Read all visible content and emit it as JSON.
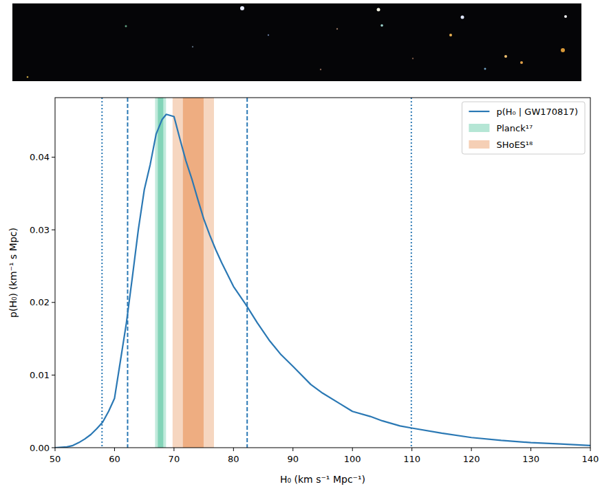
{
  "chart_data": {
    "type": "line",
    "xlabel": "H₀ (km s⁻¹ Mpc⁻¹)",
    "ylabel": "p(H₀) (km⁻¹ s Mpc)",
    "x": [
      50,
      52,
      53,
      54,
      55,
      56,
      57,
      58,
      59,
      60,
      61,
      62,
      63,
      64,
      65,
      66,
      67,
      68,
      68.7,
      70,
      71,
      72,
      73,
      74,
      75,
      76,
      77,
      78,
      80,
      82,
      84,
      86,
      88,
      90,
      93,
      95,
      98,
      100,
      103,
      105,
      108,
      110,
      115,
      120,
      125,
      130,
      135,
      140
    ],
    "series": [
      {
        "name": "p(H₀ | GW170817)",
        "color": "#2a78b4",
        "values": [
          0,
          0.0001,
          0.0003,
          0.0007,
          0.0012,
          0.0018,
          0.0026,
          0.0035,
          0.005,
          0.0068,
          0.012,
          0.0172,
          0.0235,
          0.03,
          0.0355,
          0.039,
          0.0432,
          0.0452,
          0.0459,
          0.0456,
          0.0425,
          0.0395,
          0.037,
          0.0342,
          0.0315,
          0.0293,
          0.0273,
          0.0255,
          0.0222,
          0.0198,
          0.0172,
          0.0148,
          0.0128,
          0.0112,
          0.0087,
          0.0075,
          0.006,
          0.005,
          0.0043,
          0.0037,
          0.003,
          0.0027,
          0.002,
          0.0014,
          0.001,
          0.0007,
          0.0005,
          0.0003
        ]
      }
    ],
    "bands": [
      {
        "name": "Planck¹⁷",
        "color": "#5cc7a2",
        "inner": [
          67.28,
          68.2
        ],
        "outer": [
          66.82,
          68.66
        ]
      },
      {
        "name": "SHoES¹⁸",
        "color": "#e8945a",
        "inner": [
          71.5,
          74.98
        ],
        "outer": [
          69.76,
          76.72
        ]
      }
    ],
    "intervals": [
      {
        "values": [
          62.2,
          82.3
        ],
        "line_style": "dashed"
      },
      {
        "values": [
          57.9,
          109.9
        ],
        "line_style": "dotted"
      }
    ],
    "xlim": [
      50,
      140
    ],
    "ylim": [
      0,
      0.0482
    ],
    "xticks": [
      50,
      60,
      70,
      80,
      90,
      100,
      110,
      120,
      130,
      140
    ],
    "yticks": [
      {
        "value": 0,
        "label": "0.00"
      },
      {
        "value": 0.01,
        "label": "0.01"
      },
      {
        "value": 0.02,
        "label": "0.02"
      },
      {
        "value": 0.03,
        "label": "0.03"
      },
      {
        "value": 0.04,
        "label": "0.04"
      }
    ],
    "legend": "upper right",
    "grid": false
  }
}
